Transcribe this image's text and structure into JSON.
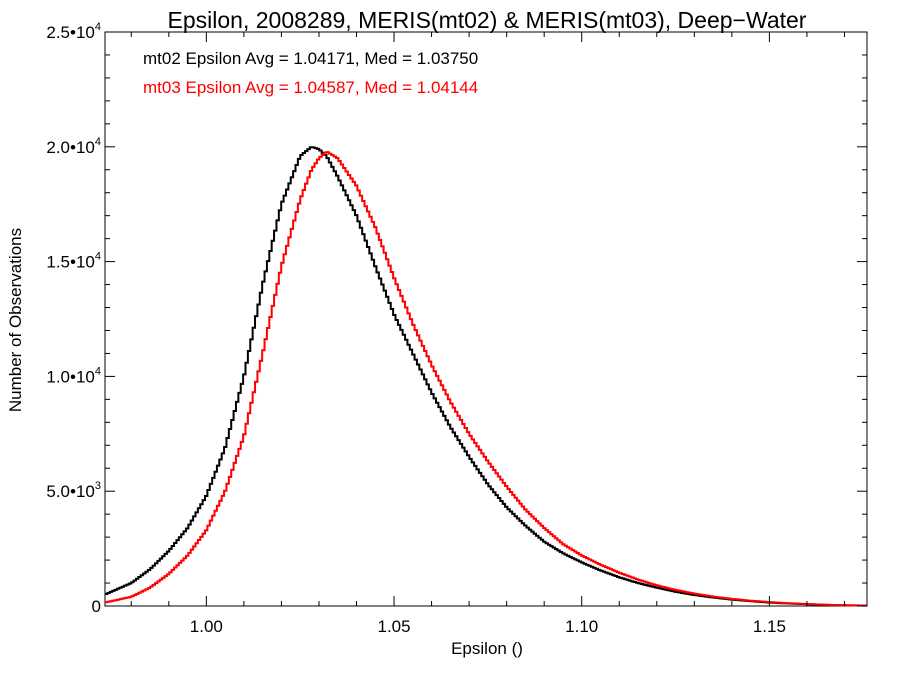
{
  "chart_data": {
    "type": "line",
    "step": true,
    "title": "Epsilon, 2008289, MERIS(mt02) & MERIS(mt03), Deep−Water",
    "xlabel": "Epsilon ()",
    "ylabel": "Number of Observations",
    "xlim": [
      0.973,
      1.176
    ],
    "ylim": [
      0,
      25000
    ],
    "x_ticks": [
      1.0,
      1.05,
      1.1,
      1.15
    ],
    "x_tick_labels": [
      "1.00",
      "1.05",
      "1.10",
      "1.15"
    ],
    "y_ticks": [
      {
        "value": 0,
        "mantissa": "0",
        "exponent": ""
      },
      {
        "value": 5000,
        "mantissa": "5.0•10",
        "exponent": "3"
      },
      {
        "value": 10000,
        "mantissa": "1.0•10",
        "exponent": "4"
      },
      {
        "value": 15000,
        "mantissa": "1.5•10",
        "exponent": "4"
      },
      {
        "value": 20000,
        "mantissa": "2.0•10",
        "exponent": "4"
      },
      {
        "value": 25000,
        "mantissa": "2.5•10",
        "exponent": "4"
      }
    ],
    "grid": false,
    "annotations": [
      {
        "text": "mt02 Epsilon Avg = 1.04171, Med = 1.03750",
        "color": "#000000"
      },
      {
        "text": "mt03 Epsilon Avg = 1.04587, Med = 1.04144",
        "color": "#ff0000"
      }
    ],
    "series": [
      {
        "color": "#000000",
        "x": [
          0.973,
          0.98,
          0.985,
          0.99,
          0.995,
          1.0,
          1.005,
          1.01,
          1.015,
          1.02,
          1.025,
          1.028,
          1.03,
          1.032,
          1.035,
          1.04,
          1.045,
          1.05,
          1.055,
          1.06,
          1.065,
          1.07,
          1.075,
          1.08,
          1.085,
          1.09,
          1.095,
          1.1,
          1.105,
          1.11,
          1.115,
          1.12,
          1.125,
          1.13,
          1.135,
          1.14,
          1.145,
          1.15,
          1.155,
          1.16,
          1.165,
          1.17,
          1.176
        ],
        "y": [
          500,
          1000,
          1600,
          2400,
          3400,
          4800,
          6900,
          10000,
          14000,
          17500,
          19600,
          20000,
          19900,
          19600,
          18700,
          17000,
          14800,
          12700,
          11000,
          9300,
          7800,
          6500,
          5300,
          4300,
          3500,
          2800,
          2300,
          1900,
          1550,
          1250,
          1000,
          800,
          620,
          480,
          370,
          280,
          210,
          150,
          110,
          80,
          50,
          30,
          20
        ]
      },
      {
        "color": "#ff0000",
        "x": [
          0.973,
          0.98,
          0.985,
          0.99,
          0.995,
          1.0,
          1.005,
          1.01,
          1.015,
          1.02,
          1.025,
          1.028,
          1.03,
          1.032,
          1.035,
          1.04,
          1.045,
          1.05,
          1.055,
          1.06,
          1.065,
          1.07,
          1.075,
          1.08,
          1.085,
          1.09,
          1.095,
          1.1,
          1.105,
          1.11,
          1.115,
          1.12,
          1.125,
          1.13,
          1.135,
          1.14,
          1.145,
          1.15,
          1.155,
          1.16,
          1.165,
          1.17,
          1.176
        ],
        "y": [
          150,
          400,
          800,
          1400,
          2200,
          3300,
          5000,
          7400,
          11000,
          14800,
          17700,
          19000,
          19500,
          19800,
          19500,
          18300,
          16500,
          14300,
          12300,
          10500,
          8900,
          7500,
          6300,
          5200,
          4200,
          3400,
          2700,
          2200,
          1800,
          1450,
          1150,
          900,
          700,
          540,
          410,
          310,
          230,
          170,
          120,
          85,
          55,
          30,
          15
        ]
      }
    ]
  }
}
